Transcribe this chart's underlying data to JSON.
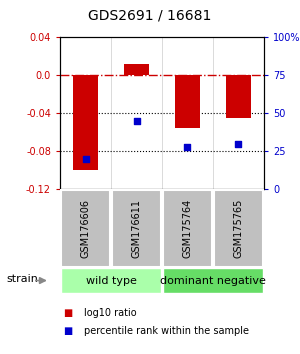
{
  "title": "GDS2691 / 16681",
  "samples": [
    "GSM176606",
    "GSM176611",
    "GSM175764",
    "GSM175765"
  ],
  "log10_ratio": [
    -0.1,
    0.012,
    -0.055,
    -0.045
  ],
  "percentile_rank": [
    20,
    45,
    28,
    30
  ],
  "groups": [
    {
      "label": "wild type",
      "color": "#aaffaa",
      "indices": [
        0,
        1
      ]
    },
    {
      "label": "dominant negative",
      "color": "#66dd66",
      "indices": [
        2,
        3
      ]
    }
  ],
  "ylim_left": [
    -0.12,
    0.04
  ],
  "ylim_right": [
    0,
    100
  ],
  "left_ticks": [
    0.04,
    0.0,
    -0.04,
    -0.08,
    -0.12
  ],
  "right_ticks": [
    100,
    75,
    50,
    25,
    0
  ],
  "bar_color": "#CC0000",
  "dot_color": "#0000CC",
  "hline_color": "#CC0000",
  "background_color": "#ffffff",
  "label_log10": "log10 ratio",
  "label_percentile": "percentile rank within the sample",
  "strain_label": "strain",
  "group_label_fontsize": 8,
  "sample_fontsize": 7,
  "tick_fontsize": 7,
  "title_fontsize": 10,
  "bar_width": 0.5
}
